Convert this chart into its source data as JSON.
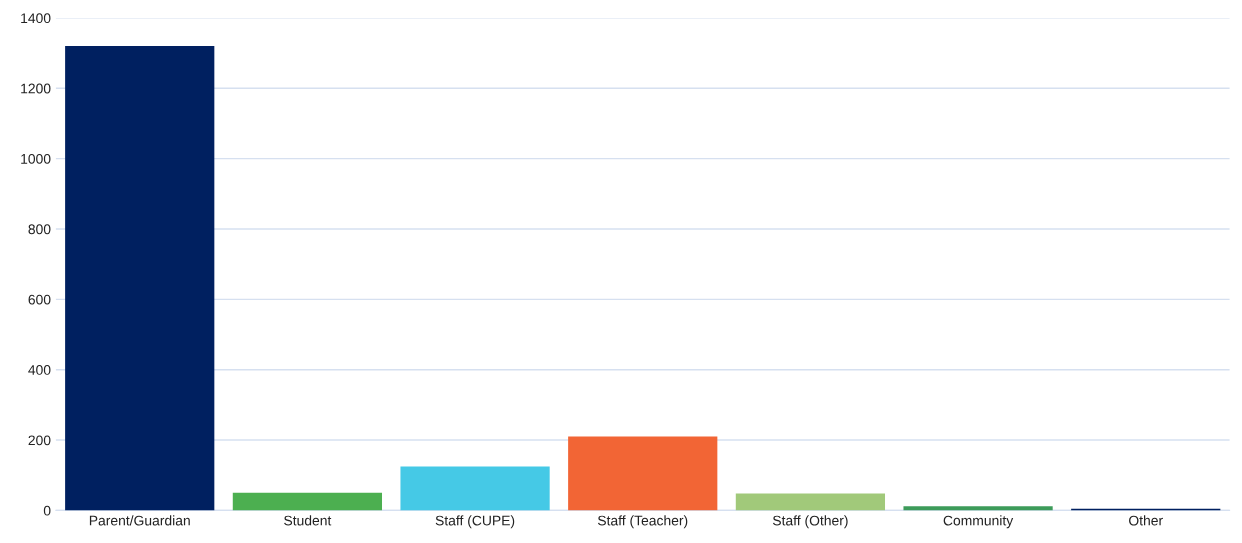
{
  "chart_data": {
    "type": "bar",
    "categories": [
      "Parent/Guardian",
      "Student",
      "Staff (CUPE)",
      "Staff (Teacher)",
      "Staff (Other)",
      "Community",
      "Other"
    ],
    "values": [
      1320,
      50,
      125,
      210,
      48,
      12,
      5
    ],
    "colors": [
      "#002060",
      "#4caf50",
      "#45c9e6",
      "#f26535",
      "#a1c97a",
      "#3d9b5a",
      "#002060"
    ],
    "ylim": [
      0,
      1400
    ],
    "yticks": [
      0,
      200,
      400,
      600,
      800,
      1000,
      1200,
      1400
    ],
    "grid": "y"
  }
}
